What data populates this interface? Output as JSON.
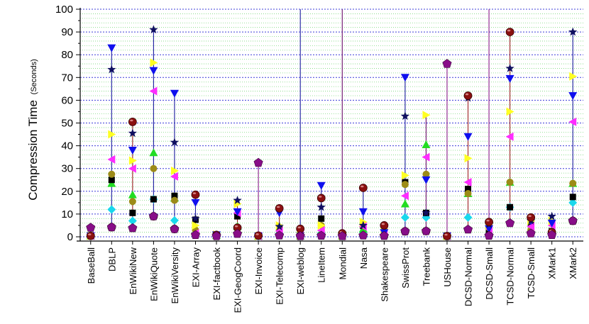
{
  "chart_data": {
    "type": "scatter",
    "ylabel": "Compression Time",
    "ylabel_unit": "(Seconds)",
    "ylim": [
      0,
      100
    ],
    "yticks": [
      "0",
      "10",
      "20",
      "30",
      "40",
      "50",
      "60",
      "70",
      "80",
      "90",
      "100"
    ],
    "grid": true,
    "categories": [
      "BaseBall",
      "DBLP",
      "EnWikiNew",
      "EnWikiQuote",
      "EnWikiVersity",
      "EXI-Array",
      "EXI-factbook",
      "EXI-GeogCoord",
      "EXI-Invoice",
      "EXI-Telecomp",
      "EXI-weblog",
      "LineItem",
      "Mondial",
      "Nasa",
      "Shakespeare",
      "SwissProt",
      "Treebank",
      "USHouse",
      "DCSD-Normal",
      "DCSD-Small",
      "TCSD-Normal",
      "TCSD-Small",
      "XMark1",
      "XMark2"
    ],
    "series": [
      {
        "marker": "circle",
        "color": "#e8140c",
        "values": [
          0.4,
          4.2,
          3.8,
          9,
          3.4,
          0.8,
          0.3,
          1.3,
          0.3,
          0.6,
          0.3,
          0.5,
          0.3,
          0.6,
          0.4,
          2.4,
          2.5,
          0.3,
          3.2,
          0.5,
          6,
          1.5,
          0.8,
          7
        ]
      },
      {
        "marker": "diamond",
        "color": "#19d8ec",
        "values": [
          0.4,
          12,
          7,
          16.5,
          7.2,
          1.5,
          0.5,
          3.4,
          0.3,
          1.5,
          0.3,
          1.5,
          0.3,
          2,
          0.6,
          8.5,
          8.5,
          0.3,
          8.5,
          1.2,
          13,
          2,
          1.5,
          15
        ]
      },
      {
        "marker": "triangle-up",
        "color": "#22dd22",
        "values": [
          0.4,
          23.5,
          18.5,
          37,
          17,
          2.5,
          0.6,
          4.6,
          0.3,
          2.5,
          0.3,
          2.5,
          0.3,
          3.5,
          1,
          14.5,
          40.5,
          0.3,
          19,
          1.8,
          24,
          3,
          2,
          23.5
        ]
      },
      {
        "marker": "square",
        "color": "#000000",
        "values": [
          0.4,
          25,
          10.5,
          16.5,
          18,
          7.5,
          0.8,
          9,
          0.3,
          4,
          1.2,
          8,
          0.4,
          4.8,
          1.6,
          24,
          10.5,
          0.3,
          21,
          3,
          13,
          6,
          2.5,
          17.5
        ]
      },
      {
        "marker": "circle",
        "color": "#9c8b18",
        "values": [
          0.4,
          27.5,
          15.5,
          30,
          16,
          3,
          0.8,
          4,
          0.3,
          3,
          0.3,
          5,
          0.3,
          5,
          3.2,
          23,
          27.5,
          0.3,
          19,
          4,
          24,
          3,
          2.5,
          23.5
        ]
      },
      {
        "marker": "triangle-left",
        "color": "#ff2cff",
        "values": [
          0.4,
          34,
          30,
          64,
          26.5,
          1.5,
          0.6,
          10.5,
          0.3,
          2.5,
          0.5,
          2.8,
          0.3,
          4.5,
          2.5,
          18,
          35,
          0.3,
          24,
          3.5,
          44,
          4.5,
          5,
          50.5
        ]
      },
      {
        "marker": "triangle-right",
        "color": "#ffff22",
        "values": [
          0.4,
          45,
          33.5,
          76.5,
          29,
          5,
          1,
          14.5,
          0.3,
          5,
          0.6,
          5,
          0.6,
          6.5,
          3.5,
          27,
          53.5,
          0.3,
          34.5,
          5,
          55,
          7,
          7,
          70.5
        ]
      },
      {
        "marker": "triangle-down",
        "color": "#1010ee",
        "values": [
          0.4,
          83,
          38,
          73,
          63,
          15,
          0.8,
          11,
          0.3,
          10.5,
          2,
          22.5,
          0.4,
          11,
          1.8,
          70,
          25,
          0.3,
          44,
          3.5,
          69.5,
          7,
          6,
          62
        ]
      },
      {
        "marker": "star",
        "color": "#101060",
        "values": [
          0.4,
          73.5,
          45.5,
          91,
          41.5,
          8,
          0.8,
          16,
          0.3,
          4.5,
          1.2,
          13,
          0.4,
          5,
          5,
          53,
          10.5,
          0.3,
          61,
          5.5,
          74,
          7,
          9,
          90
        ]
      },
      {
        "marker": "circle-3d",
        "color": "#8b1010",
        "values": [
          0.4,
          4.2,
          50.5,
          9,
          3.4,
          18.5,
          0.8,
          4,
          0.5,
          12.5,
          3.5,
          17,
          1.5,
          21.5,
          5,
          2.4,
          2.5,
          0.3,
          62,
          6.5,
          90,
          8.5,
          2,
          7
        ]
      },
      {
        "marker": "pentagon",
        "color": "#880e88",
        "values": [
          4,
          4.2,
          3.8,
          9,
          3.4,
          0.8,
          0.3,
          1.3,
          32.5,
          0.6,
          0.3,
          0.5,
          0.3,
          0.6,
          0.4,
          2.4,
          2.5,
          76,
          3.2,
          0.5,
          6,
          1.5,
          0.8,
          7
        ]
      }
    ],
    "range_lines": [
      {
        "color": "#1a1aa0",
        "indices": [
          1,
          3,
          4,
          5,
          10,
          11,
          13,
          15,
          22,
          23
        ]
      },
      {
        "color": "#9a2020",
        "indices": [
          2,
          7,
          9,
          18,
          20,
          21
        ]
      },
      {
        "color": "#8a1c8a",
        "indices": [
          8,
          17,
          19
        ]
      },
      {
        "color": "#6a0c6a",
        "indices": [
          0,
          6,
          12,
          14,
          16
        ]
      }
    ],
    "clipped_lines": [
      10,
      12,
      19
    ]
  }
}
